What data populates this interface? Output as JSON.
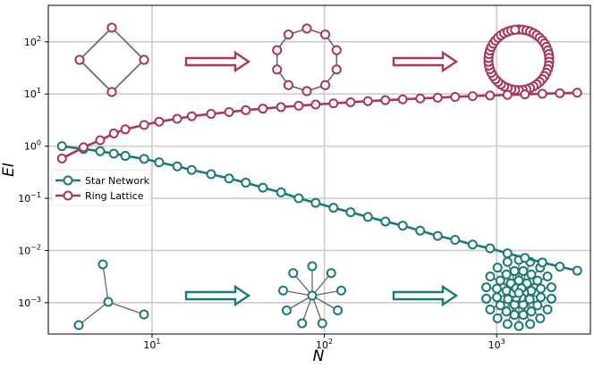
{
  "chart_data": {
    "type": "line",
    "title": "",
    "xlabel": "N",
    "ylabel": "EI",
    "x_scale": "log",
    "y_scale": "log",
    "xlim": [
      2.5,
      3500
    ],
    "ylim": [
      0.00025,
      500
    ],
    "grid": true,
    "legend_position": "center-left",
    "x_ticks": [
      {
        "value": 10,
        "base": "10",
        "exp": "1"
      },
      {
        "value": 100,
        "base": "10",
        "exp": "2"
      },
      {
        "value": 1000,
        "base": "10",
        "exp": "3"
      }
    ],
    "y_ticks": [
      {
        "value": 0.001,
        "base": "10",
        "exp": "−3"
      },
      {
        "value": 0.01,
        "base": "10",
        "exp": "−2"
      },
      {
        "value": 0.1,
        "base": "10",
        "exp": "−1"
      },
      {
        "value": 1,
        "base": "10",
        "exp": "0"
      },
      {
        "value": 10,
        "base": "10",
        "exp": "1"
      },
      {
        "value": 100,
        "base": "10",
        "exp": "2"
      }
    ],
    "series": [
      {
        "name": "Star Network",
        "color": "#1a7a72",
        "x": [
          3,
          4,
          5,
          6,
          7,
          9,
          11,
          14,
          17,
          22,
          28,
          35,
          44,
          56,
          71,
          89,
          113,
          142,
          179,
          226,
          285,
          360,
          455,
          574,
          725,
          915,
          1155,
          1459,
          1842,
          2325,
          2935
        ],
        "y": [
          1.0,
          0.88,
          0.8,
          0.72,
          0.65,
          0.57,
          0.49,
          0.41,
          0.35,
          0.29,
          0.24,
          0.2,
          0.16,
          0.13,
          0.1,
          0.082,
          0.066,
          0.054,
          0.044,
          0.036,
          0.03,
          0.024,
          0.019,
          0.016,
          0.013,
          0.011,
          0.0088,
          0.0072,
          0.0059,
          0.0049,
          0.0041
        ]
      },
      {
        "name": "Ring Lattice",
        "color": "#a8375e",
        "x": [
          3,
          4,
          5,
          6,
          7,
          9,
          11,
          14,
          17,
          22,
          28,
          35,
          44,
          56,
          71,
          89,
          113,
          142,
          179,
          226,
          285,
          360,
          455,
          574,
          725,
          915,
          1155,
          1459,
          1842,
          2325,
          2935
        ],
        "y": [
          0.58,
          0.95,
          1.3,
          1.75,
          2.1,
          2.55,
          2.95,
          3.35,
          3.75,
          4.15,
          4.5,
          4.9,
          5.25,
          5.6,
          5.95,
          6.3,
          6.6,
          6.95,
          7.3,
          7.6,
          7.9,
          8.2,
          8.5,
          8.8,
          9.1,
          9.35,
          9.6,
          9.85,
          10.1,
          10.35,
          10.6
        ]
      }
    ],
    "annotations": {
      "ring_network_sizes": [
        4,
        10,
        50
      ],
      "star_network_sizes": [
        4,
        10,
        50
      ]
    }
  }
}
